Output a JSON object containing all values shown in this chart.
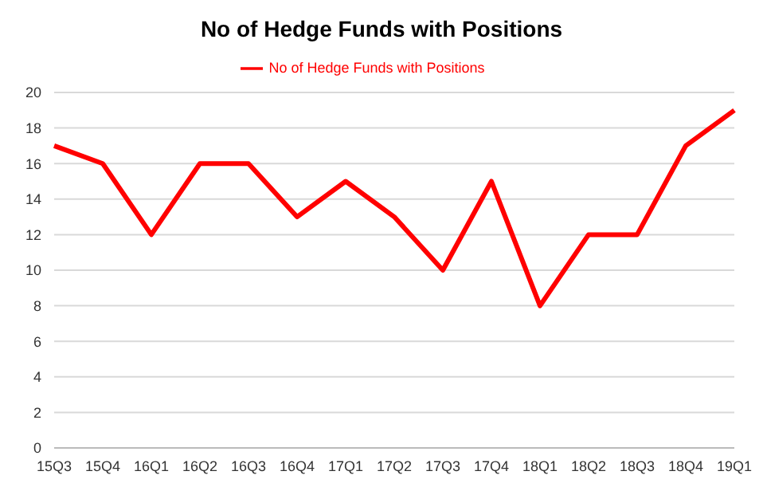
{
  "chart_data": {
    "type": "line",
    "title": "No of Hedge Funds with Positions",
    "categories": [
      "15Q3",
      "15Q4",
      "16Q1",
      "16Q2",
      "16Q3",
      "16Q4",
      "17Q1",
      "17Q2",
      "17Q3",
      "17Q4",
      "18Q1",
      "18Q2",
      "18Q3",
      "18Q4",
      "19Q1"
    ],
    "series": [
      {
        "name": "No of Hedge Funds with Positions",
        "color": "#ff0000",
        "values": [
          17,
          16,
          12,
          16,
          16,
          13,
          15,
          13,
          10,
          15,
          8,
          12,
          12,
          17,
          19
        ]
      }
    ],
    "ylim": [
      0,
      20
    ],
    "yticks": [
      0,
      2,
      4,
      6,
      8,
      10,
      12,
      14,
      16,
      18,
      20
    ],
    "grid": "y",
    "legend": "top",
    "marker": "none",
    "line_style": "solid"
  }
}
